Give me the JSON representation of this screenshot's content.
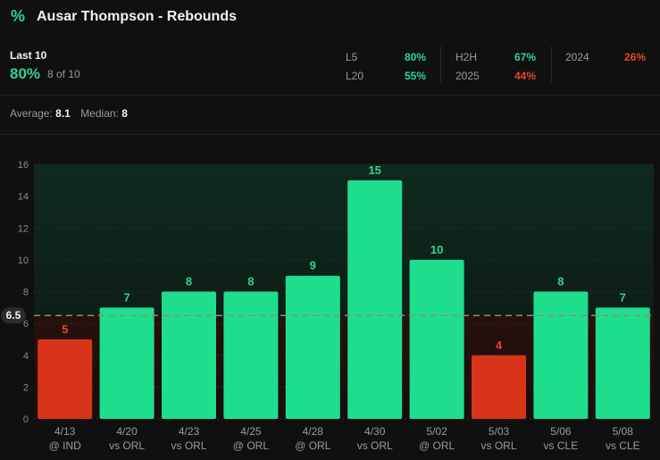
{
  "header": {
    "icon": "percent-icon",
    "icon_glyph": "%",
    "title": "Ausar Thompson - Rebounds"
  },
  "summary": {
    "label": "Last 10",
    "pct": "80%",
    "count": "8 of 10",
    "stats": [
      {
        "label": "L5",
        "value": "80%",
        "status": "good"
      },
      {
        "label": "L20",
        "value": "55%",
        "status": "good"
      },
      {
        "label": "H2H",
        "value": "67%",
        "status": "good"
      },
      {
        "label": "2025",
        "value": "44%",
        "status": "bad"
      },
      {
        "label": "2024",
        "value": "26%",
        "status": "bad"
      }
    ]
  },
  "averages": {
    "average_label": "Average:",
    "average": "8.1",
    "median_label": "Median:",
    "median": "8"
  },
  "colors": {
    "over": "#1ede8e",
    "under": "#d7341a",
    "over_text": "#2fd493",
    "under_text": "#e4462a"
  },
  "chart_data": {
    "type": "bar",
    "line": 6.5,
    "line_label": "6.5",
    "ylim": [
      0,
      16
    ],
    "yticks": [
      0,
      2,
      4,
      6,
      8,
      10,
      12,
      14,
      16
    ],
    "categories": [
      "4/13",
      "4/20",
      "4/23",
      "4/25",
      "4/28",
      "4/30",
      "5/02",
      "5/03",
      "5/06",
      "5/08"
    ],
    "opponents": [
      "@ IND",
      "vs ORL",
      "vs ORL",
      "@ ORL",
      "@ ORL",
      "vs ORL",
      "@ ORL",
      "vs ORL",
      "vs CLE",
      "vs CLE"
    ],
    "values": [
      5,
      7,
      8,
      8,
      9,
      15,
      10,
      4,
      8,
      7
    ]
  }
}
